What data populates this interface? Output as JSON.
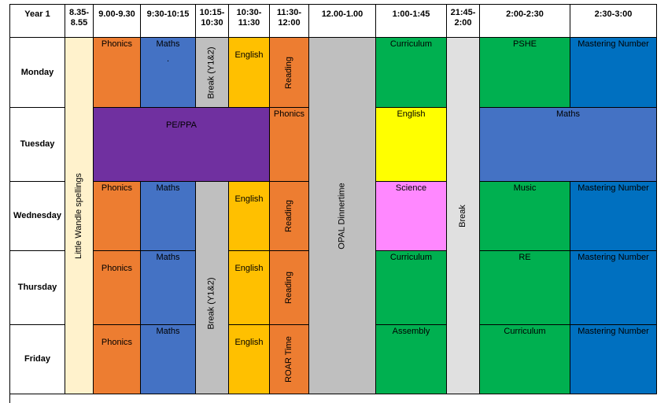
{
  "headers": [
    "Year 1",
    "8.35-\n8.55",
    "9.00-9.30",
    "9:30-10:15",
    "10:15-\n10:30",
    "10:30-\n11:30",
    "11:30-\n12:00",
    "12.00-1.00",
    "1:00-1:45",
    "21:45-\n2:00",
    "2:00-2:30",
    "2:30-3:00"
  ],
  "days": [
    "Monday",
    "Tuesday",
    "Wednesday",
    "Thursday",
    "Friday"
  ],
  "colors": {
    "spellings": "#fff2cc",
    "phonics": "#ed7d31",
    "maths": "#4472c4",
    "break": "#bfbfbf",
    "english": "#ffc000",
    "reading": "#ed7d31",
    "dinner": "#bfbfbf",
    "curriculum": "#00b050",
    "afternoon_break": "#e0e0e0",
    "pshe": "#00b050",
    "mastering": "#0070c0",
    "pe": "#7030a0",
    "tuesday_english": "#ffff00",
    "tuesday_maths": "#4472c4",
    "science": "#ff88ff"
  },
  "cells": {
    "little_wandle": "Little Wandle spellings",
    "dinner": "OPAL Dinnertime",
    "afternoon_break": "Break",
    "mon_phonics": "Phonics",
    "mon_maths": "Maths",
    "mon_maths_dot": ".",
    "mon_break": "Break (Y1&2)",
    "mon_english": "English",
    "mon_reading": "Reading",
    "mon_curriculum": "Curriculum",
    "mon_pshe": "PSHE",
    "mon_mastering": "Mastering Number",
    "tue_pe": "PE/PPA",
    "tue_phonics": "Phonics",
    "tue_english": "English",
    "tue_maths": "Maths",
    "wed_phonics": "Phonics",
    "wed_maths": "Maths",
    "wed_english": "English",
    "wed_reading": "Reading",
    "wed_science": "Science",
    "wed_music": "Music",
    "wed_mastering": "Mastering Number",
    "thu_phonics": "Phonics",
    "thu_maths": "Maths",
    "thu_break": "Break (Y1&2)",
    "thu_english": "English",
    "thu_reading": "Reading",
    "thu_curriculum": "Curriculum",
    "thu_re": "RE",
    "thu_mastering": "Mastering Number",
    "fri_phonics": "Phonics",
    "fri_maths": "Maths",
    "fri_english": "English",
    "fri_roar": "ROAR Time",
    "fri_assembly": "Assembly",
    "fri_curriculum": "Curriculum",
    "fri_mastering": "Mastering Number"
  }
}
